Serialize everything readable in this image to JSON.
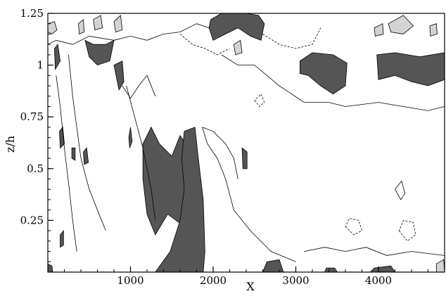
{
  "chart_data": {
    "type": "contour",
    "xlabel": "X",
    "ylabel": "z/h",
    "xlim": [
      0,
      4800
    ],
    "ylim": [
      0,
      1.25
    ],
    "x_major_ticks": [
      {
        "value": 1000,
        "label": "1000"
      },
      {
        "value": 2000,
        "label": "2000"
      },
      {
        "value": 3000,
        "label": "3000"
      },
      {
        "value": 4000,
        "label": "4000"
      }
    ],
    "y_major_ticks": [
      {
        "value": 0.25,
        "label": "0.25"
      },
      {
        "value": 0.5,
        "label": "0.5"
      },
      {
        "value": 0.75,
        "label": "0.75"
      },
      {
        "value": 1.0,
        "label": "1"
      },
      {
        "value": 1.25,
        "label": "1.25"
      }
    ],
    "x_minor_step": 200,
    "y_minor_step": 0.05,
    "grid": false,
    "fill_colors": {
      "dark": "#555555",
      "light": "#d3d3d3",
      "background": "#ffffff"
    },
    "regions": [
      {
        "kind": "dark",
        "points": [
          [
            1150,
            0.62
          ],
          [
            1250,
            0.7
          ],
          [
            1350,
            0.62
          ],
          [
            1500,
            0.56
          ],
          [
            1600,
            0.66
          ],
          [
            1700,
            0.6
          ],
          [
            1800,
            0.42
          ],
          [
            1800,
            0.3
          ],
          [
            1650,
            0.22
          ],
          [
            1450,
            0.28
          ],
          [
            1300,
            0.18
          ],
          [
            1200,
            0.28
          ],
          [
            1150,
            0.45
          ]
        ]
      },
      {
        "kind": "dark",
        "points": [
          [
            1650,
            0.68
          ],
          [
            1780,
            0.7
          ],
          [
            1820,
            0.55
          ],
          [
            1880,
            0.35
          ],
          [
            1900,
            0.1
          ],
          [
            1880,
            0.0
          ],
          [
            1300,
            0.0
          ],
          [
            1480,
            0.1
          ],
          [
            1600,
            0.25
          ],
          [
            1650,
            0.4
          ],
          [
            1620,
            0.55
          ]
        ]
      },
      {
        "kind": "dark",
        "points": [
          [
            1970,
            1.22
          ],
          [
            2100,
            1.25
          ],
          [
            2400,
            1.25
          ],
          [
            2550,
            1.24
          ],
          [
            2620,
            1.2
          ],
          [
            2580,
            1.12
          ],
          [
            2450,
            1.14
          ],
          [
            2300,
            1.18
          ],
          [
            2150,
            1.15
          ],
          [
            2000,
            1.12
          ],
          [
            1950,
            1.18
          ]
        ]
      },
      {
        "kind": "dark",
        "points": [
          [
            3050,
            1.02
          ],
          [
            3200,
            1.06
          ],
          [
            3450,
            1.05
          ],
          [
            3620,
            1.01
          ],
          [
            3600,
            0.9
          ],
          [
            3450,
            0.86
          ],
          [
            3300,
            0.9
          ],
          [
            3150,
            0.95
          ],
          [
            3050,
            0.96
          ]
        ]
      },
      {
        "kind": "dark",
        "points": [
          [
            3980,
            1.05
          ],
          [
            4200,
            1.06
          ],
          [
            4500,
            1.04
          ],
          [
            4800,
            1.06
          ],
          [
            4800,
            0.93
          ],
          [
            4600,
            0.9
          ],
          [
            4400,
            0.92
          ],
          [
            4200,
            0.95
          ],
          [
            4000,
            0.93
          ]
        ]
      },
      {
        "kind": "dark",
        "points": [
          [
            80,
            1.08
          ],
          [
            120,
            1.1
          ],
          [
            150,
            1.02
          ],
          [
            90,
            0.98
          ]
        ]
      },
      {
        "kind": "dark",
        "points": [
          [
            450,
            1.12
          ],
          [
            550,
            1.1
          ],
          [
            700,
            1.1
          ],
          [
            800,
            1.12
          ],
          [
            750,
            1.02
          ],
          [
            600,
            1.0
          ],
          [
            500,
            1.04
          ]
        ]
      },
      {
        "kind": "dark",
        "points": [
          [
            800,
            1.0
          ],
          [
            900,
            1.02
          ],
          [
            920,
            0.92
          ],
          [
            860,
            0.88
          ]
        ]
      },
      {
        "kind": "dark",
        "points": [
          [
            980,
            0.65
          ],
          [
            1000,
            0.7
          ],
          [
            1020,
            0.63
          ],
          [
            990,
            0.6
          ]
        ]
      },
      {
        "kind": "dark",
        "points": [
          [
            140,
            0.68
          ],
          [
            180,
            0.7
          ],
          [
            200,
            0.62
          ],
          [
            150,
            0.6
          ]
        ]
      },
      {
        "kind": "dark",
        "points": [
          [
            290,
            0.6
          ],
          [
            330,
            0.6
          ],
          [
            330,
            0.54
          ],
          [
            290,
            0.55
          ]
        ]
      },
      {
        "kind": "dark",
        "points": [
          [
            430,
            0.58
          ],
          [
            470,
            0.6
          ],
          [
            490,
            0.53
          ],
          [
            440,
            0.52
          ]
        ]
      },
      {
        "kind": "dark",
        "points": [
          [
            2350,
            0.6
          ],
          [
            2410,
            0.58
          ],
          [
            2410,
            0.5
          ],
          [
            2360,
            0.5
          ]
        ]
      },
      {
        "kind": "dark",
        "points": [
          [
            150,
            0.18
          ],
          [
            190,
            0.2
          ],
          [
            190,
            0.13
          ],
          [
            150,
            0.12
          ]
        ]
      },
      {
        "kind": "dark",
        "points": [
          [
            2650,
            0.05
          ],
          [
            2800,
            0.06
          ],
          [
            2850,
            0.0
          ],
          [
            2600,
            0.0
          ]
        ]
      },
      {
        "kind": "dark",
        "points": [
          [
            3370,
            0.02
          ],
          [
            3470,
            0.02
          ],
          [
            3500,
            0.0
          ],
          [
            3350,
            0.0
          ]
        ]
      },
      {
        "kind": "dark",
        "points": [
          [
            3950,
            0.02
          ],
          [
            4150,
            0.03
          ],
          [
            4200,
            0.0
          ],
          [
            3900,
            0.0
          ]
        ]
      },
      {
        "kind": "dark",
        "points": [
          [
            0,
            0.04
          ],
          [
            50,
            0.03
          ],
          [
            60,
            0.0
          ],
          [
            0,
            0.0
          ]
        ]
      },
      {
        "kind": "light",
        "points": [
          [
            0,
            1.2
          ],
          [
            80,
            1.21
          ],
          [
            110,
            1.17
          ],
          [
            50,
            1.15
          ],
          [
            0,
            1.16
          ]
        ]
      },
      {
        "kind": "light",
        "points": [
          [
            370,
            1.2
          ],
          [
            430,
            1.22
          ],
          [
            440,
            1.16
          ],
          [
            380,
            1.15
          ]
        ]
      },
      {
        "kind": "light",
        "points": [
          [
            550,
            1.22
          ],
          [
            640,
            1.24
          ],
          [
            660,
            1.18
          ],
          [
            570,
            1.17
          ]
        ]
      },
      {
        "kind": "light",
        "points": [
          [
            800,
            1.21
          ],
          [
            880,
            1.24
          ],
          [
            900,
            1.17
          ],
          [
            820,
            1.16
          ]
        ]
      },
      {
        "kind": "light",
        "points": [
          [
            2250,
            1.1
          ],
          [
            2330,
            1.12
          ],
          [
            2350,
            1.06
          ],
          [
            2270,
            1.05
          ]
        ]
      },
      {
        "kind": "light",
        "points": [
          [
            3950,
            1.18
          ],
          [
            4050,
            1.2
          ],
          [
            4060,
            1.15
          ],
          [
            3960,
            1.14
          ]
        ]
      },
      {
        "kind": "light",
        "points": [
          [
            4120,
            1.2
          ],
          [
            4300,
            1.24
          ],
          [
            4420,
            1.19
          ],
          [
            4300,
            1.15
          ],
          [
            4150,
            1.16
          ]
        ]
      },
      {
        "kind": "light",
        "points": [
          [
            4620,
            1.19
          ],
          [
            4700,
            1.2
          ],
          [
            4710,
            1.15
          ],
          [
            4630,
            1.14
          ]
        ]
      },
      {
        "kind": "light",
        "points": [
          [
            4700,
            0.04
          ],
          [
            4790,
            0.06
          ],
          [
            4800,
            0.0
          ],
          [
            4700,
            0.0
          ]
        ]
      }
    ],
    "contours": [
      {
        "style": "solid",
        "points": [
          [
            1870,
            0.7
          ],
          [
            1930,
            0.62
          ],
          [
            2050,
            0.55
          ],
          [
            2150,
            0.45
          ],
          [
            2250,
            0.3
          ],
          [
            2450,
            0.2
          ],
          [
            2700,
            0.1
          ],
          [
            3000,
            0.05
          ]
        ]
      },
      {
        "style": "solid",
        "points": [
          [
            1870,
            0.7
          ],
          [
            2000,
            0.68
          ],
          [
            2150,
            0.62
          ],
          [
            2250,
            0.55
          ],
          [
            2300,
            0.45
          ]
        ]
      },
      {
        "style": "solid",
        "points": [
          [
            900,
            0.9
          ],
          [
            1000,
            0.84
          ],
          [
            1100,
            0.9
          ],
          [
            1200,
            0.95
          ],
          [
            1300,
            0.85
          ]
        ]
      },
      {
        "style": "solid",
        "points": [
          [
            2100,
            1.05
          ],
          [
            2300,
            1.0
          ],
          [
            2500,
            1.0
          ],
          [
            2800,
            0.9
          ],
          [
            3100,
            0.82
          ],
          [
            3400,
            0.82
          ],
          [
            3600,
            0.8
          ],
          [
            4000,
            0.82
          ],
          [
            4300,
            0.8
          ],
          [
            4600,
            0.78
          ],
          [
            4800,
            0.8
          ]
        ]
      },
      {
        "style": "solid",
        "points": [
          [
            250,
            1.05
          ],
          [
            300,
            0.85
          ],
          [
            350,
            0.7
          ],
          [
            400,
            0.55
          ],
          [
            500,
            0.4
          ],
          [
            600,
            0.3
          ],
          [
            700,
            0.2
          ]
        ]
      },
      {
        "style": "solid",
        "points": [
          [
            100,
            0.95
          ],
          [
            150,
            0.8
          ],
          [
            200,
            0.6
          ],
          [
            260,
            0.4
          ],
          [
            300,
            0.25
          ],
          [
            350,
            0.1
          ]
        ]
      },
      {
        "style": "solid",
        "points": [
          [
            950,
            0.9
          ],
          [
            1050,
            0.75
          ],
          [
            1150,
            0.6
          ],
          [
            1200,
            0.5
          ],
          [
            1250,
            0.4
          ],
          [
            1300,
            0.25
          ]
        ]
      },
      {
        "style": "solid",
        "points": [
          [
            3100,
            0.1
          ],
          [
            3350,
            0.12
          ],
          [
            3600,
            0.1
          ],
          [
            3850,
            0.12
          ],
          [
            4100,
            0.08
          ],
          [
            4400,
            0.1
          ],
          [
            4800,
            0.08
          ]
        ]
      },
      {
        "style": "dashed",
        "points": [
          [
            1600,
            1.15
          ],
          [
            1750,
            1.1
          ],
          [
            1900,
            1.08
          ],
          [
            2050,
            1.05
          ],
          [
            2200,
            1.08
          ]
        ]
      },
      {
        "style": "dashed",
        "points": [
          [
            2600,
            1.15
          ],
          [
            2800,
            1.1
          ],
          [
            3000,
            1.08
          ],
          [
            3200,
            1.1
          ],
          [
            3300,
            1.18
          ]
        ]
      },
      {
        "style": "dashed",
        "points": [
          [
            2500,
            0.83
          ],
          [
            2560,
            0.8
          ],
          [
            2620,
            0.82
          ],
          [
            2580,
            0.86
          ],
          [
            2500,
            0.83
          ]
        ]
      },
      {
        "style": "dashed",
        "points": [
          [
            3600,
            0.22
          ],
          [
            3700,
            0.18
          ],
          [
            3800,
            0.2
          ],
          [
            3760,
            0.25
          ],
          [
            3650,
            0.26
          ],
          [
            3600,
            0.22
          ]
        ]
      },
      {
        "style": "dashed",
        "points": [
          [
            4250,
            0.2
          ],
          [
            4350,
            0.15
          ],
          [
            4450,
            0.18
          ],
          [
            4420,
            0.24
          ],
          [
            4300,
            0.25
          ],
          [
            4250,
            0.2
          ]
        ]
      },
      {
        "style": "solid",
        "points": [
          [
            4200,
            0.4
          ],
          [
            4270,
            0.35
          ],
          [
            4320,
            0.38
          ],
          [
            4280,
            0.44
          ],
          [
            4200,
            0.4
          ]
        ]
      },
      {
        "style": "solid",
        "points": [
          [
            0,
            1.1
          ],
          [
            100,
            1.12
          ],
          [
            300,
            1.1
          ],
          [
            500,
            1.14
          ],
          [
            800,
            1.12
          ],
          [
            1000,
            1.14
          ],
          [
            1200,
            1.12
          ],
          [
            1400,
            1.15
          ],
          [
            1600,
            1.16
          ],
          [
            1800,
            1.2
          ],
          [
            1950,
            1.18
          ]
        ]
      }
    ]
  }
}
